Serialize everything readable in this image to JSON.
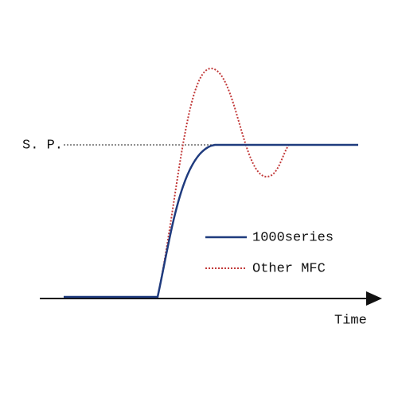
{
  "setpoint_label": "S. P.",
  "axis_label": "Time",
  "legend": [
    {
      "name": "1000series",
      "color": "#1f3b7e",
      "style": "solid"
    },
    {
      "name": "Other MFC",
      "color": "#c23a3a",
      "style": "dotted"
    }
  ]
}
